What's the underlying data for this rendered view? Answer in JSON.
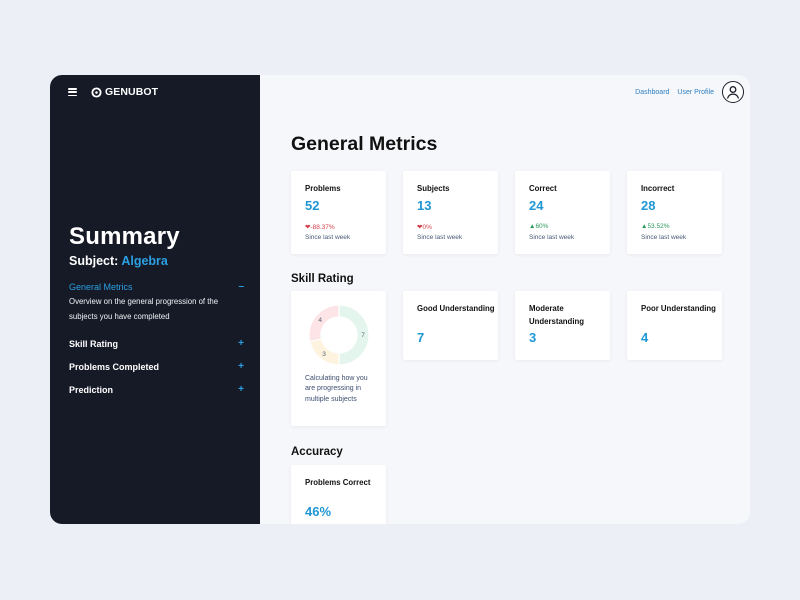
{
  "brand": {
    "name": "GENUBOT"
  },
  "sidebar": {
    "title": "Summary",
    "subject_label": "Subject:",
    "subject_value": "Algebra",
    "items": [
      {
        "label": "General Metrics",
        "sign": "–",
        "active": true,
        "description": "Overview on the general progression of the subjects you have completed"
      },
      {
        "label": "Skill Rating",
        "sign": "+"
      },
      {
        "label": "Problems Completed",
        "sign": "+"
      },
      {
        "label": "Prediction",
        "sign": "+"
      }
    ]
  },
  "header": {
    "links": [
      "Dashboard",
      "User Profile"
    ]
  },
  "main": {
    "title": "General Metrics",
    "metrics": [
      {
        "label": "Problems",
        "value": "52",
        "delta": "-88.37%",
        "trend": "down",
        "since": "Since last week"
      },
      {
        "label": "Subjects",
        "value": "13",
        "delta": "0%",
        "trend": "down",
        "since": "Since last week"
      },
      {
        "label": "Correct",
        "value": "24",
        "delta": "60%",
        "trend": "up",
        "since": "Since last week"
      },
      {
        "label": "Incorrect",
        "value": "28",
        "delta": "53.52%",
        "trend": "up",
        "since": "Since last week"
      }
    ],
    "skill_section": "Skill Rating",
    "skill_donut": {
      "segments": [
        {
          "label": "7",
          "value": 7,
          "color": "#e3f5ec"
        },
        {
          "label": "3",
          "value": 3,
          "color": "#fdf3df"
        },
        {
          "label": "4",
          "value": 4,
          "color": "#fde4e6"
        }
      ],
      "caption": "Calculating how you are progressing in multiple subjects"
    },
    "skills": [
      {
        "label": "Good Understanding",
        "value": "7"
      },
      {
        "label": "Moderate Understanding",
        "value": "3"
      },
      {
        "label": "Poor Understanding",
        "value": "4"
      }
    ],
    "accuracy_section": "Accuracy",
    "accuracy": {
      "label": "Problems Correct",
      "value": "46%"
    }
  },
  "colors": {
    "accent": "#1f97d4",
    "sidebar_bg": "#161a26",
    "down": "#d33f4a",
    "up": "#2a9a5a"
  }
}
